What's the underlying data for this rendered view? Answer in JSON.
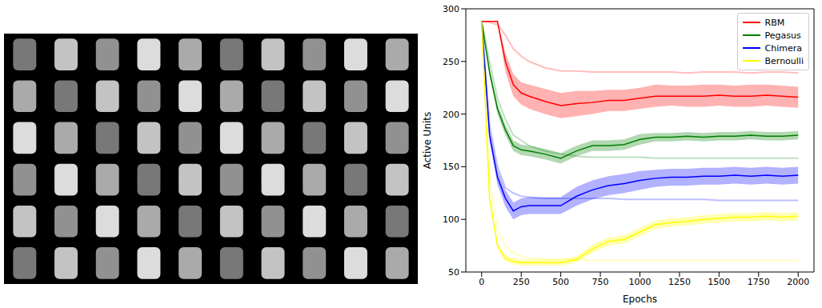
{
  "chart_data": {
    "type": "line",
    "x_label": "Epochs",
    "y_label": "Active Units",
    "xlim": [
      -100,
      2100
    ],
    "xticks": [
      0,
      250,
      500,
      750,
      1000,
      1250,
      1500,
      1750,
      2000
    ],
    "ylim": [
      50,
      300
    ],
    "yticks": [
      50,
      100,
      150,
      200,
      250,
      300
    ],
    "legend": "upper right",
    "grid": false,
    "x": [
      0,
      50,
      100,
      150,
      200,
      250,
      300,
      400,
      500,
      600,
      700,
      800,
      900,
      1000,
      1100,
      1200,
      1300,
      1400,
      1500,
      1600,
      1700,
      1800,
      1900,
      2000
    ],
    "series": [
      {
        "name": "RBM",
        "color": "#ff0000",
        "values": [
          288,
          288,
          288,
          250,
          228,
          220,
          217,
          212,
          208,
          210,
          211,
          213,
          213,
          215,
          217,
          217,
          217,
          217,
          218,
          217,
          217,
          218,
          217,
          216
        ],
        "lower": [
          288,
          288,
          287,
          240,
          217,
          209,
          205,
          200,
          196,
          198,
          200,
          203,
          203,
          205,
          207,
          208,
          207,
          207,
          208,
          207,
          207,
          208,
          207,
          206
        ],
        "upper": [
          288,
          288,
          289,
          258,
          238,
          230,
          228,
          224,
          220,
          222,
          222,
          223,
          223,
          225,
          228,
          227,
          227,
          228,
          228,
          227,
          228,
          228,
          227,
          226
        ],
        "baseline": [
          288,
          287,
          285,
          275,
          262,
          255,
          250,
          244,
          241,
          241,
          240,
          240,
          240,
          240,
          240,
          240,
          239,
          240,
          240,
          240,
          239,
          240,
          240,
          239
        ]
      },
      {
        "name": "Pegasus",
        "color": "#008000",
        "values": [
          288,
          240,
          205,
          185,
          170,
          166,
          165,
          162,
          158,
          165,
          170,
          170,
          171,
          176,
          178,
          178,
          179,
          178,
          179,
          179,
          180,
          179,
          179,
          180
        ],
        "lower": [
          288,
          236,
          200,
          180,
          165,
          161,
          160,
          157,
          153,
          160,
          165,
          165,
          166,
          171,
          174,
          174,
          175,
          174,
          175,
          175,
          176,
          175,
          175,
          176
        ],
        "upper": [
          288,
          244,
          210,
          190,
          175,
          171,
          170,
          167,
          163,
          170,
          175,
          175,
          176,
          181,
          182,
          182,
          183,
          182,
          183,
          183,
          184,
          183,
          183,
          184
        ],
        "baseline": [
          288,
          250,
          215,
          195,
          180,
          175,
          170,
          165,
          162,
          160,
          159,
          159,
          159,
          159,
          158,
          158,
          158,
          158,
          158,
          158,
          158,
          158,
          158,
          158
        ]
      },
      {
        "name": "Chimera",
        "color": "#0000ff",
        "values": [
          288,
          180,
          140,
          120,
          108,
          112,
          113,
          113,
          113,
          122,
          128,
          132,
          134,
          137,
          139,
          140,
          140,
          141,
          141,
          142,
          141,
          142,
          141,
          142
        ],
        "lower": [
          288,
          174,
          133,
          112,
          100,
          104,
          105,
          105,
          105,
          113,
          119,
          123,
          125,
          128,
          131,
          132,
          132,
          133,
          133,
          134,
          133,
          134,
          133,
          134
        ],
        "upper": [
          288,
          186,
          147,
          128,
          116,
          120,
          121,
          121,
          121,
          131,
          137,
          141,
          143,
          146,
          147,
          148,
          148,
          149,
          149,
          150,
          149,
          150,
          149,
          150
        ],
        "baseline": [
          288,
          190,
          150,
          130,
          125,
          122,
          121,
          120,
          120,
          120,
          120,
          120,
          119,
          119,
          119,
          119,
          119,
          119,
          118,
          118,
          118,
          118,
          118,
          118
        ]
      },
      {
        "name": "Bernoulli",
        "color": "#ffff00",
        "values": [
          288,
          120,
          75,
          63,
          60,
          59,
          59,
          59,
          59,
          62,
          72,
          79,
          81,
          88,
          95,
          97,
          98,
          100,
          101,
          102,
          102,
          103,
          102,
          103
        ],
        "lower": [
          288,
          117,
          72,
          60,
          57,
          56,
          56,
          56,
          56,
          59,
          68,
          75,
          77,
          84,
          91,
          93,
          94,
          96,
          97,
          98,
          98,
          99,
          98,
          99
        ],
        "upper": [
          288,
          123,
          78,
          66,
          63,
          62,
          62,
          62,
          62,
          65,
          76,
          83,
          85,
          92,
          99,
          101,
          102,
          104,
          105,
          106,
          106,
          107,
          106,
          107
        ],
        "baseline": [
          288,
          140,
          90,
          75,
          68,
          65,
          63,
          62,
          62,
          62,
          61,
          61,
          61,
          61,
          61,
          61,
          61,
          61,
          61,
          61,
          61,
          61,
          61,
          61
        ]
      }
    ]
  }
}
